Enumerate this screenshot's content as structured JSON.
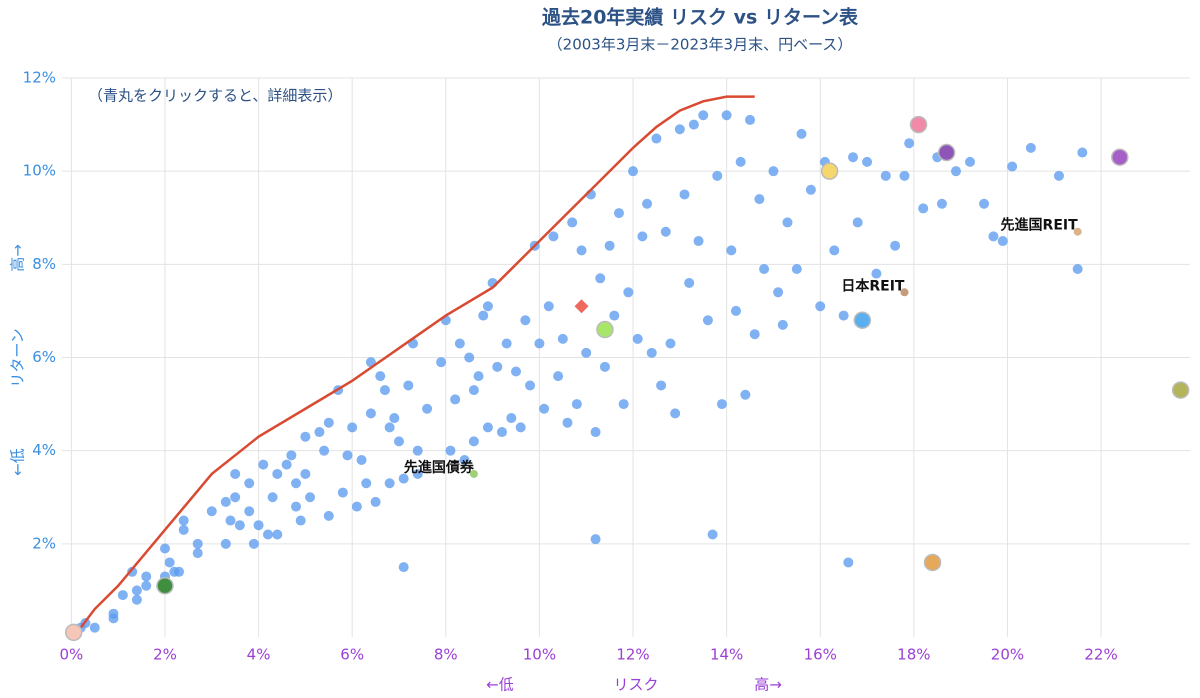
{
  "chart_data": {
    "type": "scatter",
    "title": "過去20年実績 リスク vs リターン表",
    "subtitle": "（2003年3月末－2023年3月末、円ベース）",
    "annotation": "（青丸をクリックすると、詳細表示）",
    "xlabel": [
      "←低",
      "リスク",
      "高→"
    ],
    "ylabel": [
      "←低",
      "リターン",
      "高→"
    ],
    "xlim": [
      -0.2,
      23.9
    ],
    "ylim": [
      0,
      12
    ],
    "xticks": [
      {
        "value": 0,
        "label": "0%"
      },
      {
        "value": 2,
        "label": "2%"
      },
      {
        "value": 4,
        "label": "4%"
      },
      {
        "value": 6,
        "label": "6%"
      },
      {
        "value": 8,
        "label": "8%"
      },
      {
        "value": 10,
        "label": "10%"
      },
      {
        "value": 12,
        "label": "12%"
      },
      {
        "value": 14,
        "label": "14%"
      },
      {
        "value": 16,
        "label": "16%"
      },
      {
        "value": 18,
        "label": "18%"
      },
      {
        "value": 20,
        "label": "20%"
      },
      {
        "value": 22,
        "label": "22%"
      }
    ],
    "yticks": [
      {
        "value": 2,
        "label": "2%"
      },
      {
        "value": 4,
        "label": "4%"
      },
      {
        "value": 6,
        "label": "6%"
      },
      {
        "value": 8,
        "label": "8%"
      },
      {
        "value": 10,
        "label": "10%"
      },
      {
        "value": 12,
        "label": "12%"
      }
    ],
    "grid": true,
    "color": "#5b9bf0",
    "x": [
      0.2,
      0.3,
      0.5,
      0.9,
      0.9,
      1.1,
      1.3,
      1.4,
      1.4,
      1.6,
      1.6,
      2.0,
      2.0,
      2.1,
      2.2,
      2.3,
      2.4,
      2.4,
      2.7,
      2.7,
      3.0,
      3.3,
      3.3,
      3.4,
      3.5,
      3.5,
      3.6,
      3.8,
      3.8,
      3.9,
      4.0,
      4.1,
      4.2,
      4.3,
      4.4,
      4.4,
      4.6,
      4.7,
      4.8,
      4.8,
      4.9,
      5.0,
      5.0,
      5.1,
      5.3,
      5.4,
      5.5,
      5.5,
      5.7,
      5.8,
      5.9,
      6.0,
      6.1,
      6.2,
      6.3,
      6.4,
      6.4,
      6.5,
      6.6,
      6.7,
      6.8,
      6.8,
      6.9,
      7.0,
      7.1,
      7.1,
      7.2,
      7.3,
      7.4,
      7.4,
      7.6,
      7.9,
      8.0,
      8.1,
      8.2,
      8.3,
      8.4,
      8.5,
      8.6,
      8.6,
      8.7,
      8.8,
      8.9,
      8.9,
      9.0,
      9.1,
      9.2,
      9.3,
      9.4,
      9.5,
      9.6,
      9.7,
      9.8,
      9.9,
      10.0,
      10.1,
      10.2,
      10.3,
      10.4,
      10.5,
      10.6,
      10.7,
      10.8,
      10.9,
      11.0,
      11.1,
      11.2,
      11.2,
      11.3,
      11.4,
      11.5,
      11.6,
      11.7,
      11.8,
      11.9,
      12.0,
      12.1,
      12.2,
      12.3,
      12.4,
      12.5,
      12.6,
      12.7,
      12.8,
      12.9,
      13.0,
      13.1,
      13.2,
      13.3,
      13.4,
      13.5,
      13.6,
      13.7,
      13.8,
      13.9,
      14.0,
      14.1,
      14.2,
      14.3,
      14.4,
      14.5,
      14.6,
      14.7,
      14.8,
      15.0,
      15.1,
      15.2,
      15.3,
      15.5,
      15.6,
      15.8,
      16.0,
      16.1,
      16.3,
      16.5,
      16.6,
      16.7,
      16.8,
      17.0,
      17.2,
      17.4,
      17.6,
      17.8,
      17.9,
      18.2,
      18.5,
      18.6,
      18.9,
      19.2,
      19.5,
      19.7,
      19.9,
      20.1,
      20.5,
      21.1,
      21.5,
      21.6
    ],
    "y": [
      0.2,
      0.3,
      0.2,
      0.4,
      0.5,
      0.9,
      1.4,
      0.8,
      1.0,
      1.1,
      1.3,
      1.3,
      1.9,
      1.6,
      1.4,
      1.4,
      2.3,
      2.5,
      1.8,
      2.0,
      2.7,
      2.0,
      2.9,
      2.5,
      3.5,
      3.0,
      2.4,
      2.7,
      3.3,
      2.0,
      2.4,
      3.7,
      2.2,
      3.0,
      2.2,
      3.5,
      3.7,
      3.9,
      3.3,
      2.8,
      2.5,
      4.3,
      3.5,
      3.0,
      4.4,
      4.0,
      4.6,
      2.6,
      5.3,
      3.1,
      3.9,
      4.5,
      2.8,
      3.8,
      3.3,
      5.9,
      4.8,
      2.9,
      5.6,
      5.3,
      4.5,
      3.3,
      4.7,
      4.2,
      1.5,
      3.4,
      5.4,
      6.3,
      4.0,
      3.5,
      4.9,
      5.9,
      6.8,
      4.0,
      5.1,
      6.3,
      3.8,
      6.0,
      4.2,
      5.3,
      5.6,
      6.9,
      7.1,
      4.5,
      7.6,
      5.8,
      4.4,
      6.3,
      4.7,
      5.7,
      4.5,
      6.8,
      5.4,
      8.4,
      6.3,
      4.9,
      7.1,
      8.6,
      5.6,
      6.4,
      4.6,
      8.9,
      5.0,
      8.3,
      6.1,
      9.5,
      4.4,
      2.1,
      7.7,
      5.8,
      8.4,
      6.9,
      9.1,
      5.0,
      7.4,
      10.0,
      6.4,
      8.6,
      9.3,
      6.1,
      10.7,
      5.4,
      8.7,
      6.3,
      4.8,
      10.9,
      9.5,
      7.6,
      11.0,
      8.5,
      11.2,
      6.8,
      2.2,
      9.9,
      5.0,
      11.2,
      8.3,
      7.0,
      10.2,
      5.2,
      11.1,
      6.5,
      9.4,
      7.9,
      10.0,
      7.4,
      6.7,
      8.9,
      7.9,
      10.8,
      9.6,
      7.1,
      10.2,
      8.3,
      6.9,
      1.6,
      10.3,
      8.9,
      10.2,
      7.8,
      9.9,
      8.4,
      9.9,
      10.6,
      9.2,
      10.3,
      9.3,
      10.0,
      10.2,
      9.3,
      8.6,
      8.5,
      10.1,
      10.5,
      9.9,
      7.9,
      10.4
    ],
    "highlights": [
      {
        "x": 18.1,
        "y": 11.0,
        "color": "#f08aa8"
      },
      {
        "x": 18.7,
        "y": 10.4,
        "color": "#8e55b8"
      },
      {
        "x": 22.4,
        "y": 10.3,
        "color": "#a65fc8"
      },
      {
        "x": 16.2,
        "y": 10.0,
        "color": "#f5d76e"
      },
      {
        "x": 16.9,
        "y": 6.8,
        "color": "#5aaff0"
      },
      {
        "x": 11.4,
        "y": 6.6,
        "color": "#a8e66a"
      },
      {
        "x": 10.9,
        "y": 7.1,
        "color": "#ee6a5e",
        "symbol": "diamond"
      },
      {
        "x": 2.0,
        "y": 1.1,
        "color": "#3f8f3f"
      },
      {
        "x": 0.05,
        "y": 0.1,
        "color": "#f6c6b8"
      },
      {
        "x": 23.7,
        "y": 5.3,
        "color": "#b4b45a"
      },
      {
        "x": 18.4,
        "y": 1.6,
        "color": "#e6a85a"
      }
    ],
    "labels": [
      {
        "text": "先進国REIT",
        "x": 21.5,
        "y": 8.7,
        "color": "#d9b48a"
      },
      {
        "text": "日本REIT",
        "x": 17.8,
        "y": 7.4,
        "color": "#c79a7a"
      },
      {
        "text": "先進国債券",
        "x": 8.6,
        "y": 3.5,
        "color": "#9ed07a"
      }
    ],
    "frontier": {
      "color": "#d94a32",
      "x": [
        0.2,
        0.5,
        1.0,
        1.5,
        2.0,
        2.5,
        3.0,
        3.5,
        4.0,
        5.0,
        6.0,
        7.0,
        8.0,
        9.0,
        10.0,
        11.0,
        12.0,
        12.5,
        13.0,
        13.5,
        14.0,
        14.6
      ],
      "y": [
        0.2,
        0.6,
        1.1,
        1.7,
        2.3,
        2.9,
        3.5,
        3.9,
        4.3,
        4.9,
        5.5,
        6.2,
        6.9,
        7.5,
        8.5,
        9.5,
        10.5,
        10.95,
        11.3,
        11.5,
        11.6,
        11.6
      ]
    }
  }
}
